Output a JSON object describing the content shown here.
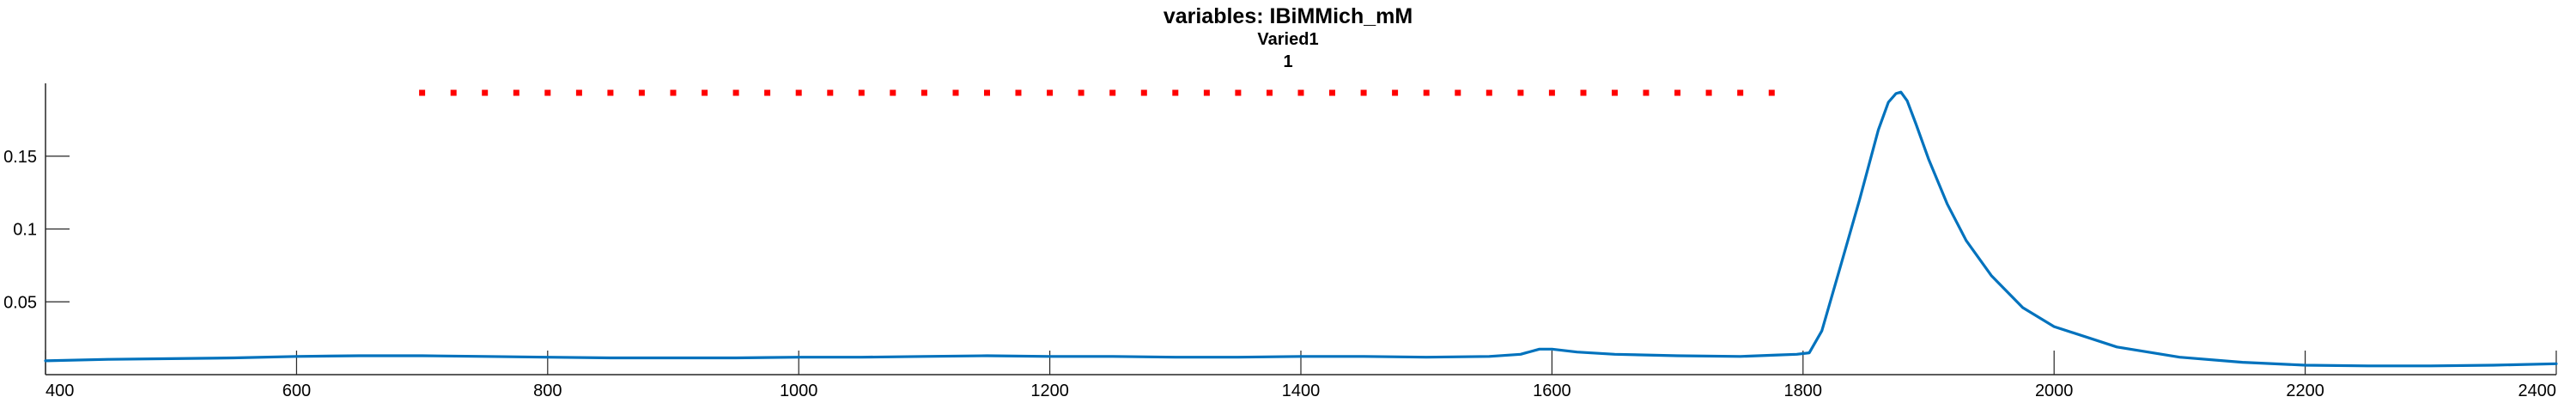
{
  "chart_data": {
    "type": "line",
    "title": "variables: IBiMMich_mM",
    "subtitle_lines": [
      "Varied1",
      "1"
    ],
    "xlabel": "",
    "ylabel": "",
    "xlim": [
      400,
      2400
    ],
    "ylim": [
      0,
      0.2
    ],
    "x_ticks": [
      400,
      600,
      800,
      1000,
      1200,
      1400,
      1600,
      1800,
      2000,
      2200,
      2400
    ],
    "x_tick_labels": [
      "400",
      "600",
      "800",
      "1000",
      "1200",
      "1400",
      "1600",
      "1800",
      "2000",
      "2200",
      "2400"
    ],
    "y_ticks": [
      0.05,
      0.1,
      0.15
    ],
    "y_tick_labels": [
      "0.05",
      "0.1",
      "0.15"
    ],
    "grid": false,
    "legend": "none",
    "colors": {
      "line": "#0072BD",
      "markers": "#FF0000",
      "axes": "#262626"
    },
    "series": [
      {
        "style": "line",
        "x": [
          400,
          450,
          500,
          550,
          600,
          650,
          700,
          750,
          800,
          850,
          900,
          950,
          1000,
          1050,
          1100,
          1150,
          1200,
          1250,
          1300,
          1350,
          1400,
          1450,
          1500,
          1550,
          1575,
          1590,
          1600,
          1620,
          1650,
          1700,
          1750,
          1780,
          1795,
          1805,
          1815,
          1830,
          1845,
          1860,
          1868,
          1874,
          1878,
          1883,
          1890,
          1900,
          1915,
          1930,
          1950,
          1975,
          2000,
          2050,
          2100,
          2150,
          2200,
          2250,
          2300,
          2350,
          2400
        ],
        "y": [
          0.0095,
          0.0105,
          0.011,
          0.0115,
          0.0125,
          0.013,
          0.013,
          0.0125,
          0.012,
          0.0115,
          0.0115,
          0.0115,
          0.012,
          0.012,
          0.0125,
          0.013,
          0.0125,
          0.0125,
          0.012,
          0.012,
          0.0125,
          0.0125,
          0.012,
          0.0125,
          0.014,
          0.0175,
          0.0175,
          0.0155,
          0.014,
          0.013,
          0.0125,
          0.0135,
          0.014,
          0.015,
          0.03,
          0.075,
          0.12,
          0.168,
          0.187,
          0.193,
          0.194,
          0.188,
          0.172,
          0.148,
          0.117,
          0.092,
          0.068,
          0.046,
          0.033,
          0.019,
          0.012,
          0.0085,
          0.0065,
          0.006,
          0.006,
          0.0065,
          0.0075
        ]
      },
      {
        "style": "markers",
        "x": [
          700,
          725,
          750,
          775,
          800,
          825,
          850,
          875,
          900,
          925,
          950,
          975,
          1000,
          1025,
          1050,
          1075,
          1100,
          1125,
          1150,
          1175,
          1200,
          1225,
          1250,
          1275,
          1300,
          1325,
          1350,
          1375,
          1400,
          1425,
          1450,
          1475,
          1500,
          1525,
          1550,
          1575,
          1600,
          1625,
          1650,
          1675,
          1700,
          1725,
          1750,
          1775
        ],
        "y": [
          0.1935,
          0.1935,
          0.1935,
          0.1935,
          0.1935,
          0.1935,
          0.1935,
          0.1935,
          0.1935,
          0.1935,
          0.1935,
          0.1935,
          0.1935,
          0.1935,
          0.1935,
          0.1935,
          0.1935,
          0.1935,
          0.1935,
          0.1935,
          0.1935,
          0.1935,
          0.1935,
          0.1935,
          0.1935,
          0.1935,
          0.1935,
          0.1935,
          0.1935,
          0.1935,
          0.1935,
          0.1935,
          0.1935,
          0.1935,
          0.1935,
          0.1935,
          0.1935,
          0.1935,
          0.1935,
          0.1935,
          0.1935,
          0.1935,
          0.1935,
          0.1935
        ]
      }
    ]
  }
}
